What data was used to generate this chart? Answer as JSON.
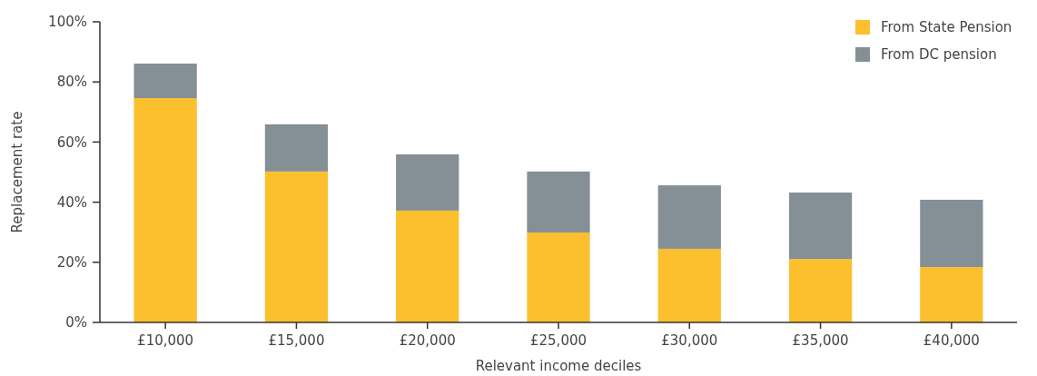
{
  "chart_data": {
    "type": "bar",
    "stacked": true,
    "xlabel": "Relevant income deciles",
    "ylabel": "Replacement rate",
    "categories": [
      "£10,000",
      "£15,000",
      "£20,000",
      "£25,000",
      "£30,000",
      "£35,000",
      "£40,000"
    ],
    "series": [
      {
        "name": "From State Pension",
        "color": "#fcbf2d",
        "values": [
          74.6,
          50.2,
          37.2,
          29.9,
          24.5,
          21.1,
          18.4
        ]
      },
      {
        "name": "From DC pension",
        "color": "#858f96",
        "values": [
          11.5,
          15.7,
          18.7,
          20.3,
          21.1,
          22.1,
          22.4
        ]
      }
    ],
    "ylim": [
      0,
      100
    ],
    "yticks": [
      {
        "value": 0,
        "label": "0%"
      },
      {
        "value": 20,
        "label": "20%"
      },
      {
        "value": 40,
        "label": "40%"
      },
      {
        "value": 60,
        "label": "60%"
      },
      {
        "value": 80,
        "label": "80%"
      },
      {
        "value": 100,
        "label": "100%"
      }
    ],
    "legend": "top right",
    "grid": false
  }
}
